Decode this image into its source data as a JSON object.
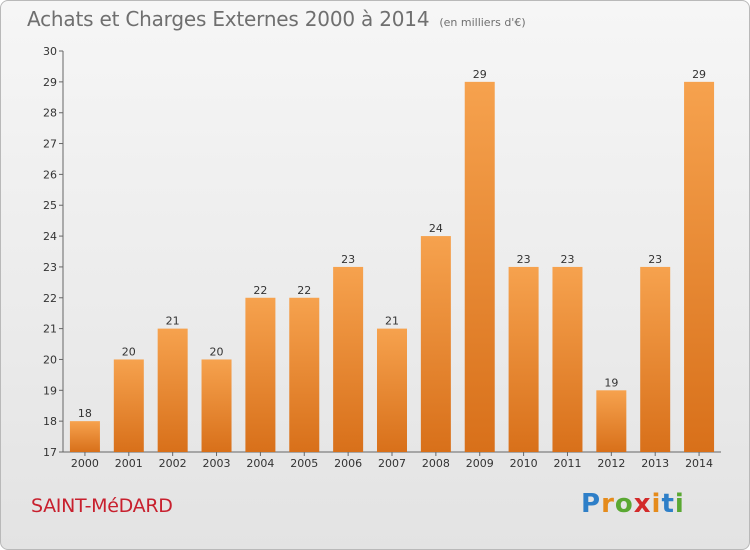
{
  "title": "Achats et Charges Externes 2000 à 2014",
  "unit": "(en milliers d'€)",
  "place": "SAINT-MéDARD",
  "logo": {
    "letters": [
      "P",
      "r",
      "o",
      "x",
      "i",
      "t",
      "i"
    ],
    "colors": [
      "#2e7fc8",
      "#e58b1b",
      "#5aa832",
      "#d32a2a",
      "#e58b1b",
      "#2e7fc8",
      "#5aa832"
    ]
  },
  "colors": {
    "bar_top": "#f6a24e",
    "bar_bottom": "#d8701a",
    "title": "#6f6f6f",
    "place": "#c8202e"
  },
  "chart_data": {
    "type": "bar",
    "title": "Achats et Charges Externes 2000 à 2014",
    "subtitle": "(en milliers d'€)",
    "categories": [
      "2000",
      "2001",
      "2002",
      "2003",
      "2004",
      "2005",
      "2006",
      "2007",
      "2008",
      "2009",
      "2010",
      "2011",
      "2012",
      "2013",
      "2014"
    ],
    "values": [
      18,
      20,
      21,
      20,
      22,
      22,
      23,
      21,
      24,
      29,
      23,
      23,
      19,
      23,
      29
    ],
    "ylim": [
      17,
      30
    ],
    "yticks": [
      17,
      18,
      19,
      20,
      21,
      22,
      23,
      24,
      25,
      26,
      27,
      28,
      29,
      30
    ],
    "grid": false,
    "xlabel": "",
    "ylabel": ""
  }
}
